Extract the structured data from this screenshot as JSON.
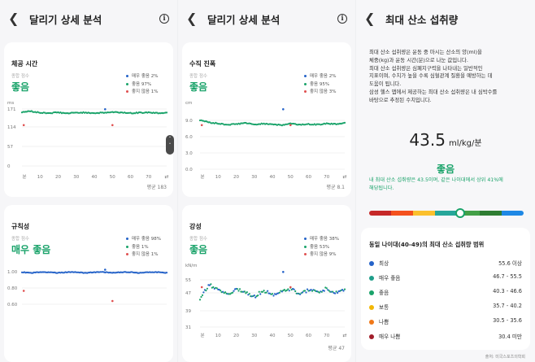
{
  "colors": {
    "green": "#1aa36a",
    "teal": "#1f9e8a",
    "blue": "#2563c9",
    "red": "#e05050",
    "grid": "#e5e5e5"
  },
  "panel1": {
    "header_title": "달리기 상세 분석",
    "card1": {
      "title": "체공 시간",
      "sub": "종합 점수",
      "grade": "좋음",
      "legend": [
        {
          "label": "매우 좋음 2%",
          "color": "#2563c9"
        },
        {
          "label": "좋음 97%",
          "color": "#1aa36a"
        },
        {
          "label": "좋지 않음 1%",
          "color": "#e05050"
        }
      ],
      "unit_label": "ms",
      "avg": "평균 183",
      "chart_data": {
        "type": "scatter",
        "y_ticks": [
          "171",
          "114",
          "57",
          "0"
        ],
        "x_ticks": [
          "0",
          "10",
          "20",
          "30",
          "40",
          "50",
          "60",
          "70"
        ],
        "x_first_label": "분",
        "ylim": [
          0,
          200
        ],
        "xlim": [
          0,
          80
        ],
        "series": [
          {
            "values_x": [
              0,
              5,
              10,
              15,
              20,
              25,
              30,
              35,
              40,
              45,
              50,
              55,
              60,
              65,
              70,
              75,
              80
            ],
            "values_y": [
              185,
              188,
              183,
              182,
              184,
              181,
              183,
              184,
              182,
              183,
              185,
              184,
              182,
              183,
              184,
              182,
              183
            ]
          }
        ]
      }
    },
    "card2": {
      "title": "규칙성",
      "sub": "종합 점수",
      "grade": "매우 좋음",
      "legend": [
        {
          "label": "매우 좋음 98%",
          "color": "#2563c9"
        },
        {
          "label": "좋음 1%",
          "color": "#1aa36a"
        },
        {
          "label": "좋지 않음 1%",
          "color": "#e05050"
        }
      ],
      "chart_data": {
        "type": "scatter",
        "y_ticks": [
          "1.00",
          "0.80",
          "0.60"
        ],
        "ylim": [
          0.5,
          1.05
        ],
        "xlim": [
          0,
          80
        ],
        "series": [
          {
            "values_x": [
              0,
              5,
              10,
              15,
              20,
              25,
              30,
              35,
              40,
              45,
              50,
              55,
              60,
              65,
              70,
              75,
              80
            ],
            "values_y": [
              1.0,
              0.99,
              1.0,
              1.0,
              0.99,
              1.0,
              1.0,
              0.99,
              1.0,
              1.0,
              0.99,
              1.0,
              1.0,
              0.99,
              1.0,
              1.0,
              0.99
            ]
          }
        ]
      }
    }
  },
  "panel2": {
    "header_title": "달리기 상세 분석",
    "card1": {
      "title": "수직 진폭",
      "sub": "종합 점수",
      "grade": "좋음",
      "legend": [
        {
          "label": "매우 좋음 2%",
          "color": "#2563c9"
        },
        {
          "label": "좋음 95%",
          "color": "#1aa36a"
        },
        {
          "label": "좋지 않음 3%",
          "color": "#e05050"
        }
      ],
      "unit_label": "cm",
      "avg": "평균 8.1",
      "chart_data": {
        "type": "scatter",
        "y_ticks": [
          "9.0",
          "6.0",
          "3.0",
          "0.0"
        ],
        "x_ticks": [
          "0",
          "10",
          "20",
          "30",
          "40",
          "50",
          "60",
          "70"
        ],
        "x_first_label": "분",
        "ylim": [
          0,
          11
        ],
        "xlim": [
          0,
          80
        ],
        "series": [
          {
            "values_x": [
              0,
              5,
              10,
              15,
              20,
              25,
              30,
              35,
              40,
              45,
              50,
              55,
              60,
              65,
              70,
              75,
              80
            ],
            "values_y": [
              8.8,
              8.4,
              8.2,
              8.0,
              8.1,
              8.3,
              8.0,
              8.2,
              8.1,
              7.9,
              8.2,
              8.0,
              8.1,
              8.0,
              8.2,
              8.1,
              8.3
            ]
          }
        ]
      }
    },
    "card2": {
      "title": "강성",
      "sub": "종합 점수",
      "grade": "좋음",
      "legend": [
        {
          "label": "매우 좋음 38%",
          "color": "#2563c9"
        },
        {
          "label": "좋음 53%",
          "color": "#1aa36a"
        },
        {
          "label": "좋지 않음 9%",
          "color": "#e05050"
        }
      ],
      "unit_label": "kN/m",
      "avg": "평균 47",
      "chart_data": {
        "type": "scatter",
        "y_ticks": [
          "55",
          "47",
          "39",
          "31"
        ],
        "x_ticks": [
          "0",
          "10",
          "20",
          "30",
          "40",
          "50",
          "60",
          "70"
        ],
        "x_first_label": "분",
        "ylim": [
          28,
          58
        ],
        "xlim": [
          0,
          80
        ],
        "series": [
          {
            "values_x": [
              0,
              5,
              10,
              15,
              20,
              25,
              30,
              35,
              40,
              45,
              50,
              55,
              60,
              65,
              70,
              75,
              80
            ],
            "values_y": [
              44,
              51,
              48,
              46,
              49,
              47,
              45,
              48,
              46,
              47,
              49,
              46,
              48,
              47,
              49,
              47,
              48
            ]
          }
        ]
      }
    }
  },
  "panel3": {
    "header_title": "최대 산소 섭취량",
    "desc": [
      "최대 산소 섭취량은 운동 중 마시는 산소의 양(ml)을",
      "체중(kg)과 운동 시간(분)으로 나눈 값입니다.",
      "최대 산소 섭취량은 심폐지구력을 나타내는 일반적인",
      "지표이며, 수치가 높을 수록 심혈관계 질환을 예방하는 데",
      "도움이 됩니다.",
      "삼성 헬스 앱에서 제공하는 최대 산소 섭취량은 내 심박수를",
      "바탕으로 추정된 수치입니다."
    ],
    "value": "43.5",
    "unit": "ml/kg/분",
    "grade": "좋음",
    "note": [
      "내 최대 산소 섭취량은 43.5이며, 같은 나이대에서 상위 41%에",
      "해당됩니다."
    ],
    "gauge_level": 0.59,
    "gauge_colors": [
      "#c62828",
      "#f4511e",
      "#fbc02d",
      "#26a69a",
      "#43a047",
      "#2e7d32",
      "#1e88e5"
    ],
    "range_title": "동일 나이대(40-49)의 최대 산소 섭취량 범위",
    "ranges": [
      {
        "label": "최상",
        "value": "55.6 이상",
        "color": "#2563c9"
      },
      {
        "label": "매우 좋음",
        "value": "46.7 - 55.5",
        "color": "#1f9e8a"
      },
      {
        "label": "좋음",
        "value": "40.3 - 46.6",
        "color": "#1aa36a"
      },
      {
        "label": "보통",
        "value": "35.7 - 40.2",
        "color": "#f2b705"
      },
      {
        "label": "나쁨",
        "value": "30.5 - 35.6",
        "color": "#f07818"
      },
      {
        "label": "매우 나쁨",
        "value": "30.4 미만",
        "color": "#a11d2a"
      }
    ],
    "source": "출처: 미국스포츠의학회"
  }
}
